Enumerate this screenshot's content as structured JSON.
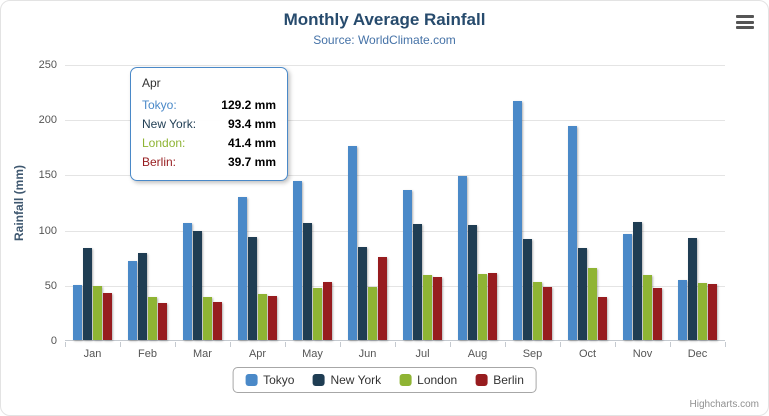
{
  "header": {
    "title": "Monthly Average Rainfall",
    "subtitle": "Source: WorldClimate.com"
  },
  "y_axis": {
    "title": "Rainfall (mm)"
  },
  "credits": {
    "label": "Highcharts.com"
  },
  "tooltip": {
    "category": "Apr",
    "rows": [
      {
        "name": "Tokyo:",
        "value": "129.2 mm",
        "color": "#4A89C8"
      },
      {
        "name": "New York:",
        "value": "93.4 mm",
        "color": "#1F3D53"
      },
      {
        "name": "London:",
        "value": "41.4 mm",
        "color": "#8FB434"
      },
      {
        "name": "Berlin:",
        "value": "39.7 mm",
        "color": "#971C1F"
      }
    ]
  },
  "chart_data": {
    "type": "bar",
    "title": "Monthly Average Rainfall",
    "subtitle": "Source: WorldClimate.com",
    "xlabel": "",
    "ylabel": "Rainfall (mm)",
    "ylim": [
      0,
      250
    ],
    "yticks": [
      0,
      50,
      100,
      150,
      200,
      250
    ],
    "grid": true,
    "legend_position": "bottom",
    "categories": [
      "Jan",
      "Feb",
      "Mar",
      "Apr",
      "May",
      "Jun",
      "Jul",
      "Aug",
      "Sep",
      "Oct",
      "Nov",
      "Dec"
    ],
    "series": [
      {
        "name": "Tokyo",
        "color": "#4A89C8",
        "values": [
          49.9,
          71.5,
          106.4,
          129.2,
          144.0,
          176.0,
          135.6,
          148.5,
          216.4,
          194.1,
          95.6,
          54.4
        ]
      },
      {
        "name": "New York",
        "color": "#1F3D53",
        "values": [
          83.6,
          78.8,
          98.5,
          93.4,
          106.0,
          84.5,
          105.0,
          104.3,
          91.2,
          83.5,
          106.6,
          92.3
        ]
      },
      {
        "name": "London",
        "color": "#8FB434",
        "values": [
          48.9,
          38.8,
          39.3,
          41.4,
          47.0,
          48.3,
          59.0,
          59.6,
          52.4,
          65.2,
          59.3,
          51.2
        ]
      },
      {
        "name": "Berlin",
        "color": "#971C1F",
        "values": [
          42.4,
          33.2,
          34.5,
          39.7,
          52.6,
          75.5,
          57.4,
          60.4,
          47.6,
          39.1,
          46.8,
          51.1
        ]
      }
    ]
  }
}
